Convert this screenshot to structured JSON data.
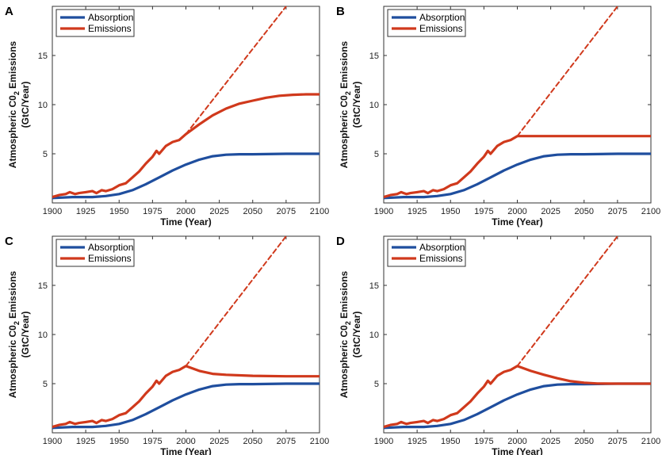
{
  "colors": {
    "absorption": "#1f4e9e",
    "emissions": "#d0391c",
    "axis": "#333333"
  },
  "chart_data": [
    {
      "panel": "A",
      "type": "line",
      "xlabel": "Time (Year)",
      "ylabel_line1": "Atmospheric C0",
      "ylabel_sub": "2",
      "ylabel_tail": " Emissions",
      "ylabel_line2": "(GtC/Year)",
      "xlim": [
        1900,
        2100
      ],
      "ylim": [
        0,
        20
      ],
      "xticks": [
        1900,
        1925,
        1950,
        1975,
        2000,
        2025,
        2050,
        2075,
        2100
      ],
      "yticks": [
        5,
        10,
        15
      ],
      "legend": [
        "Absorption",
        "Emissions"
      ],
      "legend_position": "top-left",
      "series": [
        {
          "name": "Absorption",
          "style": "solid",
          "x": [
            1900,
            1915,
            1930,
            1940,
            1950,
            1960,
            1970,
            1980,
            1990,
            2000,
            2010,
            2020,
            2030,
            2040,
            2050,
            2075,
            2100
          ],
          "y": [
            0.5,
            0.6,
            0.6,
            0.7,
            0.9,
            1.3,
            1.9,
            2.6,
            3.3,
            3.9,
            4.4,
            4.75,
            4.9,
            4.95,
            4.95,
            5.0,
            5.0
          ]
        },
        {
          "name": "Emissions",
          "style": "solid",
          "x": [
            1900,
            1905,
            1910,
            1913,
            1917,
            1920,
            1925,
            1930,
            1933,
            1937,
            1940,
            1945,
            1950,
            1955,
            1960,
            1965,
            1970,
            1975,
            1978,
            1980,
            1985,
            1990,
            1995,
            2000,
            2010,
            2020,
            2030,
            2040,
            2050,
            2060,
            2070,
            2080,
            2090,
            2100
          ],
          "y": [
            0.6,
            0.8,
            0.9,
            1.1,
            0.9,
            1.0,
            1.1,
            1.2,
            1.0,
            1.3,
            1.2,
            1.4,
            1.8,
            2.0,
            2.6,
            3.2,
            4.0,
            4.7,
            5.3,
            5.0,
            5.8,
            6.2,
            6.4,
            7.0,
            8.0,
            8.9,
            9.6,
            10.1,
            10.4,
            10.7,
            10.9,
            11.0,
            11.05,
            11.05
          ]
        },
        {
          "name": "Emissions trend",
          "style": "dashed",
          "x": [
            2000,
            2075
          ],
          "y": [
            7.0,
            20.0
          ]
        }
      ]
    },
    {
      "panel": "B",
      "type": "line",
      "xlabel": "Time (Year)",
      "ylabel_line1": "Atmospheric C0",
      "ylabel_sub": "2",
      "ylabel_tail": " Emissions",
      "ylabel_line2": "(GtC/Year)",
      "xlim": [
        1900,
        2100
      ],
      "ylim": [
        0,
        20
      ],
      "xticks": [
        1900,
        1925,
        1950,
        1975,
        2000,
        2025,
        2050,
        2075,
        2100
      ],
      "yticks": [
        5,
        10,
        15
      ],
      "legend": [
        "Absorption",
        "Emissions"
      ],
      "legend_position": "top-left",
      "series": [
        {
          "name": "Absorption",
          "style": "solid",
          "x": [
            1900,
            1915,
            1930,
            1940,
            1950,
            1960,
            1970,
            1980,
            1990,
            2000,
            2010,
            2020,
            2030,
            2040,
            2050,
            2075,
            2100
          ],
          "y": [
            0.5,
            0.6,
            0.6,
            0.7,
            0.9,
            1.3,
            1.9,
            2.6,
            3.3,
            3.9,
            4.4,
            4.75,
            4.9,
            4.95,
            4.95,
            5.0,
            5.0
          ]
        },
        {
          "name": "Emissions",
          "style": "solid",
          "x": [
            1900,
            1905,
            1910,
            1913,
            1917,
            1920,
            1925,
            1930,
            1933,
            1937,
            1940,
            1945,
            1950,
            1955,
            1960,
            1965,
            1970,
            1975,
            1978,
            1980,
            1985,
            1990,
            1995,
            2000,
            2025,
            2050,
            2075,
            2100
          ],
          "y": [
            0.6,
            0.8,
            0.9,
            1.1,
            0.9,
            1.0,
            1.1,
            1.2,
            1.0,
            1.3,
            1.2,
            1.4,
            1.8,
            2.0,
            2.6,
            3.2,
            4.0,
            4.7,
            5.3,
            5.0,
            5.8,
            6.2,
            6.4,
            6.8,
            6.8,
            6.8,
            6.8,
            6.8
          ]
        },
        {
          "name": "Emissions trend",
          "style": "dashed",
          "x": [
            2000,
            2075
          ],
          "y": [
            6.8,
            20.0
          ]
        }
      ]
    },
    {
      "panel": "C",
      "type": "line",
      "xlabel": "Time (Year)",
      "ylabel_line1": "Atmospheric C0",
      "ylabel_sub": "2",
      "ylabel_tail": " Emissions",
      "ylabel_line2": "(GtC/Year)",
      "xlim": [
        1900,
        2100
      ],
      "ylim": [
        0,
        20
      ],
      "xticks": [
        1900,
        1925,
        1950,
        1975,
        2000,
        2025,
        2050,
        2075,
        2100
      ],
      "yticks": [
        5,
        10,
        15
      ],
      "legend": [
        "Absorption",
        "Emissions"
      ],
      "legend_position": "top-left",
      "series": [
        {
          "name": "Absorption",
          "style": "solid",
          "x": [
            1900,
            1915,
            1930,
            1940,
            1950,
            1960,
            1970,
            1980,
            1990,
            2000,
            2010,
            2020,
            2030,
            2040,
            2050,
            2075,
            2100
          ],
          "y": [
            0.5,
            0.6,
            0.6,
            0.7,
            0.9,
            1.3,
            1.9,
            2.6,
            3.3,
            3.9,
            4.4,
            4.75,
            4.9,
            4.95,
            4.95,
            5.0,
            5.0
          ]
        },
        {
          "name": "Emissions",
          "style": "solid",
          "x": [
            1900,
            1905,
            1910,
            1913,
            1917,
            1920,
            1925,
            1930,
            1933,
            1937,
            1940,
            1945,
            1950,
            1955,
            1960,
            1965,
            1970,
            1975,
            1978,
            1980,
            1985,
            1990,
            1995,
            2000,
            2010,
            2020,
            2030,
            2050,
            2075,
            2100
          ],
          "y": [
            0.6,
            0.8,
            0.9,
            1.1,
            0.9,
            1.0,
            1.1,
            1.2,
            1.0,
            1.3,
            1.2,
            1.4,
            1.8,
            2.0,
            2.6,
            3.2,
            4.0,
            4.7,
            5.3,
            5.0,
            5.8,
            6.2,
            6.4,
            6.8,
            6.3,
            6.0,
            5.9,
            5.8,
            5.75,
            5.75
          ]
        },
        {
          "name": "Emissions trend",
          "style": "dashed",
          "x": [
            2000,
            2075
          ],
          "y": [
            6.8,
            20.0
          ]
        }
      ]
    },
    {
      "panel": "D",
      "type": "line",
      "xlabel": "Time (Year)",
      "ylabel_line1": "Atmospheric C0",
      "ylabel_sub": "2",
      "ylabel_tail": " Emissions",
      "ylabel_line2": "(GtC/Year)",
      "xlim": [
        1900,
        2100
      ],
      "ylim": [
        0,
        20
      ],
      "xticks": [
        1900,
        1925,
        1950,
        1975,
        2000,
        2025,
        2050,
        2075,
        2100
      ],
      "yticks": [
        5,
        10,
        15
      ],
      "legend": [
        "Absorption",
        "Emissions"
      ],
      "legend_position": "top-left",
      "series": [
        {
          "name": "Absorption",
          "style": "solid",
          "x": [
            1900,
            1915,
            1930,
            1940,
            1950,
            1960,
            1970,
            1980,
            1990,
            2000,
            2010,
            2020,
            2030,
            2040,
            2050,
            2075,
            2100
          ],
          "y": [
            0.5,
            0.6,
            0.6,
            0.7,
            0.9,
            1.3,
            1.9,
            2.6,
            3.3,
            3.9,
            4.4,
            4.75,
            4.9,
            4.95,
            4.95,
            5.0,
            5.0
          ]
        },
        {
          "name": "Emissions",
          "style": "solid",
          "x": [
            1900,
            1905,
            1910,
            1913,
            1917,
            1920,
            1925,
            1930,
            1933,
            1937,
            1940,
            1945,
            1950,
            1955,
            1960,
            1965,
            1970,
            1975,
            1978,
            1980,
            1985,
            1990,
            1995,
            2000,
            2010,
            2020,
            2030,
            2040,
            2050,
            2060,
            2075,
            2100
          ],
          "y": [
            0.6,
            0.8,
            0.9,
            1.1,
            0.9,
            1.0,
            1.1,
            1.2,
            1.0,
            1.3,
            1.2,
            1.4,
            1.8,
            2.0,
            2.6,
            3.2,
            4.0,
            4.7,
            5.3,
            5.0,
            5.8,
            6.2,
            6.4,
            6.8,
            6.3,
            5.9,
            5.55,
            5.25,
            5.1,
            5.02,
            5.0,
            5.0
          ]
        },
        {
          "name": "Emissions trend",
          "style": "dashed",
          "x": [
            2000,
            2075
          ],
          "y": [
            6.8,
            20.0
          ]
        }
      ]
    }
  ]
}
